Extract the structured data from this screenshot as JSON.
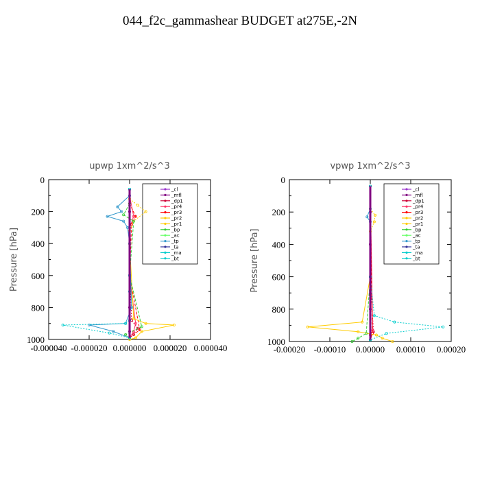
{
  "title": "044_f2c_gammashear  BUDGET at275E,-2N",
  "chart_data": [
    {
      "type": "line",
      "title": "upwp   1xm^2/s^3",
      "ylabel": "Pressure [hPa]",
      "xlabel": "",
      "xlim": [
        -4e-05,
        4e-05
      ],
      "ylim": [
        1000,
        0
      ],
      "xtick_labels": [
        "-0.000040",
        "-0.000020",
        "0.000000",
        "0.000020",
        "0.000040"
      ],
      "xticks": [
        -4e-05,
        -2e-05,
        0,
        2e-05,
        4e-05
      ],
      "ytick_labels": [
        "0",
        "200",
        "400",
        "600",
        "800",
        "1000"
      ],
      "yticks": [
        0,
        200,
        400,
        600,
        800,
        1000
      ],
      "legend_position": "top-right",
      "series": [
        {
          "name": "_cl",
          "color": "#9933cc",
          "x": [
            0,
            0,
            0,
            0,
            0
          ],
          "y": [
            60,
            200,
            400,
            700,
            990
          ]
        },
        {
          "name": "_mfl",
          "color": "#800080",
          "x": [
            0,
            0,
            0,
            0,
            0,
            0,
            0
          ],
          "y": [
            60,
            200,
            400,
            600,
            800,
            950,
            990
          ]
        },
        {
          "name": "_dp1",
          "color": "#cc0033",
          "x": [
            0,
            0,
            1e-06,
            4e-06,
            2e-06,
            0
          ],
          "y": [
            60,
            400,
            880,
            930,
            970,
            990
          ]
        },
        {
          "name": "_pr4",
          "color": "#ff3366",
          "x": [
            0,
            2e-06,
            0,
            0,
            3e-06,
            2e-06,
            0
          ],
          "y": [
            100,
            230,
            300,
            600,
            900,
            950,
            990
          ]
        },
        {
          "name": "_pr3",
          "color": "#ff0000",
          "x": [
            0,
            3e-06,
            1e-06,
            0,
            5e-06,
            0
          ],
          "y": [
            150,
            230,
            280,
            600,
            940,
            990
          ]
        },
        {
          "name": "_pr2",
          "color": "#ffcc00",
          "x": [
            0,
            4e-06,
            8e-06,
            2e-06,
            0,
            0
          ],
          "y": [
            120,
            160,
            200,
            260,
            320,
            990
          ]
        },
        {
          "name": "_pr1",
          "color": "#ffcc00",
          "x": [
            0,
            2e-06,
            8e-06,
            2.2e-05,
            6e-06,
            3e-06,
            0
          ],
          "y": [
            400,
            870,
            900,
            910,
            950,
            990,
            1000
          ]
        },
        {
          "name": "_bp",
          "color": "#33cc33",
          "x": [
            0,
            -3e-06,
            2e-06,
            0,
            6e-06,
            -2e-06,
            0
          ],
          "y": [
            150,
            220,
            260,
            600,
            920,
            970,
            990
          ]
        },
        {
          "name": "_ac",
          "color": "#66ff66",
          "x": [
            0,
            0,
            0
          ],
          "y": [
            60,
            600,
            990
          ]
        },
        {
          "name": "_tp",
          "color": "#3399cc",
          "x": [
            0,
            -6e-06,
            -4e-06,
            -1.1e-05,
            -3e-06,
            -1e-06,
            0,
            1e-06,
            -2e-06,
            -2e-05,
            -8e-06,
            0
          ],
          "y": [
            100,
            170,
            200,
            230,
            260,
            300,
            400,
            800,
            900,
            910,
            950,
            990
          ]
        },
        {
          "name": "_ta",
          "color": "#333399",
          "x": [
            0,
            0,
            0
          ],
          "y": [
            60,
            600,
            990
          ]
        },
        {
          "name": "_ma",
          "color": "#00cccc",
          "x": [
            0,
            0,
            0,
            -2e-06,
            -3.3e-05,
            -1e-05,
            0
          ],
          "y": [
            60,
            700,
            880,
            900,
            910,
            960,
            990
          ]
        },
        {
          "name": "_bt",
          "color": "#00cccc",
          "x": [
            0,
            0,
            0
          ],
          "y": [
            60,
            600,
            990
          ]
        }
      ]
    },
    {
      "type": "line",
      "title": "vpwp   1xm^2/s^3",
      "ylabel": "Pressure [hPa]",
      "xlabel": "",
      "xlim": [
        -0.0002,
        0.0002
      ],
      "ylim": [
        1000,
        0
      ],
      "xtick_labels": [
        "-0.00020",
        "-0.00010",
        "0.00000",
        "0.00010",
        "0.00020"
      ],
      "xticks": [
        -0.0002,
        -0.0001,
        0,
        0.0001,
        0.0002
      ],
      "ytick_labels": [
        "0",
        "200",
        "400",
        "600",
        "800",
        "1000"
      ],
      "yticks": [
        0,
        200,
        400,
        600,
        800,
        1000
      ],
      "legend_position": "top-right",
      "series": [
        {
          "name": "_cl",
          "color": "#9933cc",
          "x": [
            0,
            0,
            0,
            0
          ],
          "y": [
            40,
            400,
            700,
            990
          ]
        },
        {
          "name": "_mfl",
          "color": "#800080",
          "x": [
            0,
            0,
            0,
            0,
            0,
            0
          ],
          "y": [
            40,
            200,
            400,
            600,
            800,
            990
          ]
        },
        {
          "name": "_dp1",
          "color": "#cc0033",
          "x": [
            0,
            0,
            8e-06,
            0
          ],
          "y": [
            40,
            600,
            940,
            990
          ]
        },
        {
          "name": "_pr4",
          "color": "#ff3366",
          "x": [
            0,
            6e-06,
            0,
            0
          ],
          "y": [
            40,
            930,
            960,
            990
          ]
        },
        {
          "name": "_pr3",
          "color": "#ff0000",
          "x": [
            0,
            5e-06,
            0
          ],
          "y": [
            40,
            950,
            990
          ]
        },
        {
          "name": "_pr2",
          "color": "#ffcc00",
          "x": [
            0,
            1.2e-05,
            1e-05,
            0
          ],
          "y": [
            180,
            220,
            260,
            320
          ]
        },
        {
          "name": "_pr1",
          "color": "#ffcc00",
          "x": [
            0,
            -2e-05,
            -0.000155,
            -3e-05,
            1.5e-05,
            3e-05,
            5.5e-05
          ],
          "y": [
            600,
            880,
            910,
            940,
            960,
            980,
            1000
          ]
        },
        {
          "name": "_bp",
          "color": "#33cc33",
          "x": [
            0,
            -1e-05,
            -3e-05,
            -4.5e-05
          ],
          "y": [
            600,
            950,
            980,
            1000
          ]
        },
        {
          "name": "_ac",
          "color": "#66ff66",
          "x": [
            0,
            0,
            0
          ],
          "y": [
            40,
            600,
            990
          ]
        },
        {
          "name": "_tp",
          "color": "#3399cc",
          "x": [
            0,
            -8e-06,
            0,
            0
          ],
          "y": [
            180,
            230,
            260,
            990
          ]
        },
        {
          "name": "_ta",
          "color": "#333399",
          "x": [
            0,
            0,
            0
          ],
          "y": [
            40,
            600,
            990
          ]
        },
        {
          "name": "_ma",
          "color": "#00cccc",
          "x": [
            0,
            1e-05,
            6e-05,
            0.00018,
            4e-05,
            0
          ],
          "y": [
            600,
            840,
            880,
            910,
            950,
            990
          ]
        },
        {
          "name": "_bt",
          "color": "#00cccc",
          "x": [
            0,
            0,
            0
          ],
          "y": [
            40,
            600,
            990
          ]
        }
      ]
    }
  ]
}
